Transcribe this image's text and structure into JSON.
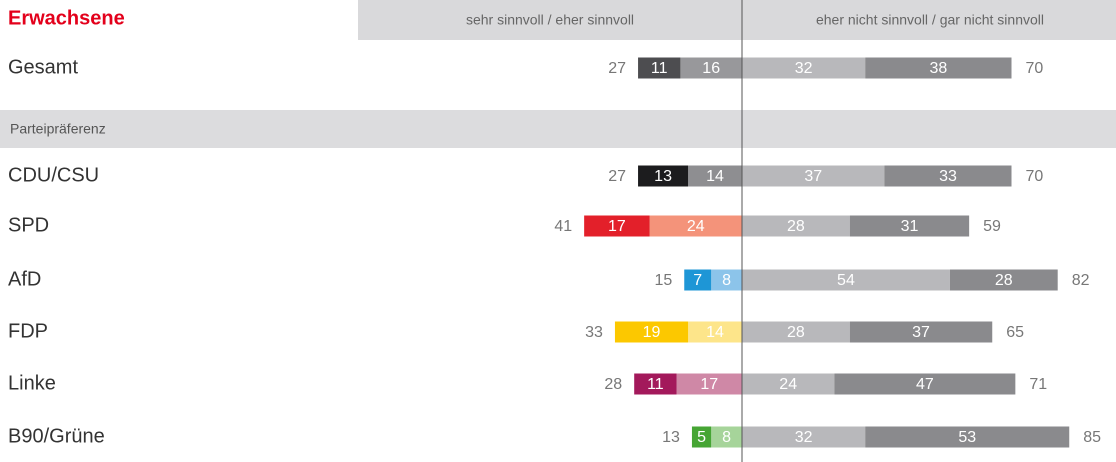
{
  "chart_data": {
    "type": "diverging_bar",
    "title": "Erwachsene",
    "left_header": "sehr sinnvoll / eher sinnvoll",
    "right_header": "eher nicht sinnvoll / gar nicht sinnvoll",
    "section_label": "Parteipräferenz",
    "categories": [
      "Gesamt",
      "CDU/CSU",
      "SPD",
      "AfD",
      "FDP",
      "Linke",
      "B90/Grüne"
    ],
    "series": [
      {
        "side": "left",
        "colors": [
          "#4d4d50",
          "#1c1c1e",
          "#e3202a",
          "#1e96d6",
          "#fcc800",
          "#a3195b",
          "#46a534"
        ],
        "values": [
          11,
          13,
          17,
          7,
          19,
          11,
          5
        ]
      },
      {
        "side": "left",
        "colors": [
          "#98989b",
          "#8e8e91",
          "#f4937a",
          "#8cc4ea",
          "#fde58a",
          "#cf88a6",
          "#a6d49a"
        ],
        "values": [
          16,
          14,
          24,
          8,
          14,
          17,
          8
        ]
      },
      {
        "side": "right",
        "color": "#b8b8bb",
        "values": [
          32,
          37,
          28,
          54,
          28,
          24,
          32
        ]
      },
      {
        "side": "right",
        "color": "#8a8a8d",
        "values": [
          38,
          33,
          31,
          28,
          37,
          47,
          53
        ]
      }
    ],
    "left_totals": [
      27,
      27,
      41,
      15,
      33,
      28,
      13
    ],
    "right_totals": [
      70,
      70,
      59,
      82,
      65,
      71,
      85
    ]
  }
}
